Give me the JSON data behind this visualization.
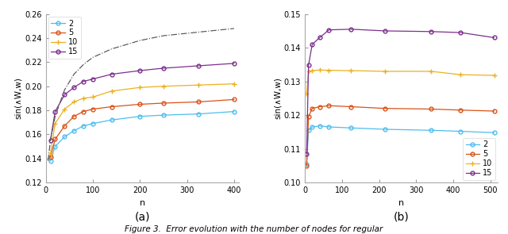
{
  "subplot_a": {
    "xlabel": "n",
    "ylabel": "sin(∧W,w)",
    "xlim": [
      0,
      410
    ],
    "ylim": [
      0.12,
      0.26
    ],
    "xticks": [
      0,
      100,
      200,
      300,
      400
    ],
    "yticks": [
      0.12,
      0.14,
      0.16,
      0.18,
      0.2,
      0.22,
      0.24,
      0.26
    ],
    "series": {
      "2": {
        "x": [
          10,
          20,
          40,
          60,
          80,
          100,
          140,
          200,
          250,
          325,
          400
        ],
        "y": [
          0.138,
          0.15,
          0.158,
          0.163,
          0.167,
          0.169,
          0.172,
          0.175,
          0.176,
          0.177,
          0.179
        ],
        "color": "#4DBEEE",
        "marker": "o"
      },
      "5": {
        "x": [
          10,
          20,
          40,
          60,
          80,
          100,
          140,
          200,
          250,
          325,
          400
        ],
        "y": [
          0.141,
          0.156,
          0.167,
          0.175,
          0.179,
          0.181,
          0.183,
          0.185,
          0.186,
          0.187,
          0.189
        ],
        "color": "#D95319",
        "marker": "o"
      },
      "10": {
        "x": [
          10,
          20,
          40,
          60,
          80,
          100,
          140,
          200,
          250,
          325,
          400
        ],
        "y": [
          0.144,
          0.169,
          0.181,
          0.187,
          0.19,
          0.191,
          0.196,
          0.199,
          0.2,
          0.201,
          0.202
        ],
        "color": "#EDB120",
        "marker": "+"
      },
      "15": {
        "x": [
          10,
          20,
          40,
          60,
          80,
          100,
          140,
          200,
          250,
          325,
          400
        ],
        "y": [
          0.155,
          0.179,
          0.193,
          0.199,
          0.204,
          0.206,
          0.21,
          0.213,
          0.215,
          0.217,
          0.219
        ],
        "color": "#7E2F8E",
        "marker": "o"
      }
    },
    "reference": {
      "x": [
        5,
        10,
        20,
        40,
        60,
        80,
        100,
        140,
        200,
        250,
        325,
        400
      ],
      "y": [
        0.138,
        0.155,
        0.175,
        0.197,
        0.21,
        0.218,
        0.224,
        0.231,
        0.238,
        0.242,
        0.245,
        0.248
      ],
      "color": "#555555",
      "linestyle": "-."
    }
  },
  "subplot_b": {
    "xlabel": "n",
    "ylabel": "sin(∧W,w)",
    "xlim": [
      0,
      520
    ],
    "ylim": [
      0.1,
      0.15
    ],
    "xticks": [
      0,
      100,
      200,
      300,
      400,
      500
    ],
    "yticks": [
      0.1,
      0.11,
      0.12,
      0.13,
      0.14,
      0.15
    ],
    "series": {
      "2": {
        "x": [
          5,
          10,
          20,
          40,
          65,
          125,
          215,
          340,
          420,
          510
        ],
        "y": [
          0.1055,
          0.1155,
          0.1165,
          0.1168,
          0.1165,
          0.1162,
          0.1158,
          0.1155,
          0.1152,
          0.1148
        ],
        "color": "#4DBEEE",
        "marker": "o"
      },
      "5": {
        "x": [
          5,
          10,
          20,
          40,
          65,
          125,
          215,
          340,
          420,
          510
        ],
        "y": [
          0.105,
          0.1195,
          0.122,
          0.1225,
          0.1228,
          0.1225,
          0.122,
          0.1218,
          0.1215,
          0.1212
        ],
        "color": "#D95319",
        "marker": "o"
      },
      "10": {
        "x": [
          5,
          10,
          20,
          40,
          65,
          125,
          215,
          340,
          420,
          510
        ],
        "y": [
          0.1265,
          0.133,
          0.1332,
          0.1334,
          0.1333,
          0.1332,
          0.133,
          0.133,
          0.132,
          0.1318
        ],
        "color": "#EDB120",
        "marker": "+"
      },
      "15": {
        "x": [
          5,
          10,
          20,
          40,
          65,
          125,
          215,
          340,
          420,
          510
        ],
        "y": [
          0.1085,
          0.1348,
          0.141,
          0.143,
          0.1453,
          0.1455,
          0.145,
          0.1448,
          0.1445,
          0.143
        ],
        "color": "#7E2F8E",
        "marker": "o"
      }
    }
  },
  "legend_labels": [
    "2",
    "5",
    "10",
    "15"
  ],
  "fig_label_a": "(a)",
  "fig_label_b": "(b)",
  "figure_caption": "Figure 3.  Error evolution with the number of nodes for regular"
}
